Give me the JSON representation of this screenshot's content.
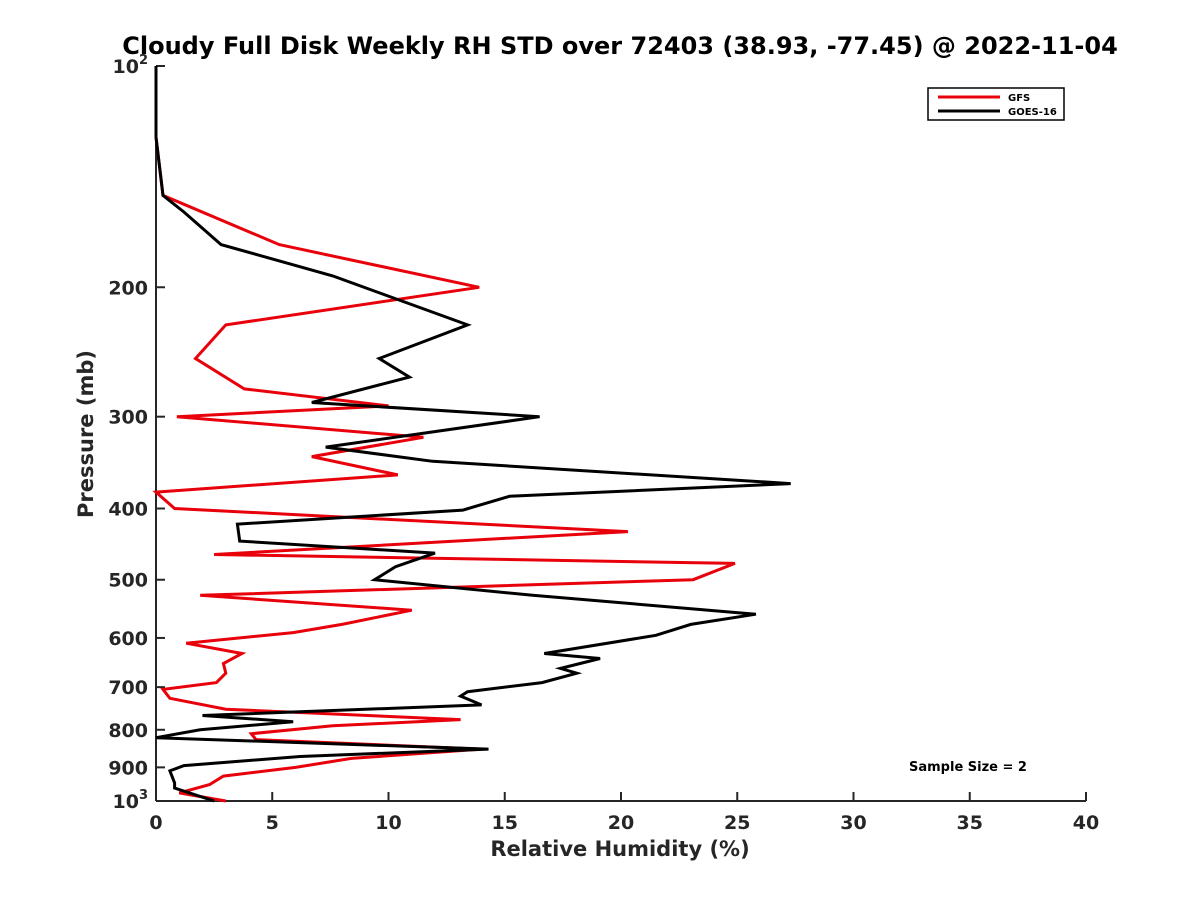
{
  "chart_data": {
    "type": "line",
    "title": "Cloudy Full Disk Weekly RH STD over 72403 (38.93, -77.45) @ 2022-11-04",
    "xlabel": "Relative Humidity (%)",
    "ylabel": "Pressure (mb)",
    "xlim": [
      0,
      40
    ],
    "ylim": [
      100,
      1000
    ],
    "y_scale": "log",
    "y_reversed": true,
    "grid": false,
    "legend_position": "top-right",
    "x_ticks": [
      0,
      5,
      10,
      15,
      20,
      25,
      30,
      35,
      40
    ],
    "x_tick_labels": [
      "0",
      "5",
      "10",
      "15",
      "20",
      "25",
      "30",
      "35",
      "40"
    ],
    "y_ticks": [
      100,
      200,
      300,
      400,
      500,
      600,
      700,
      800,
      900,
      1000
    ],
    "y_tick_labels": [
      {
        "base": "10",
        "exp": "2"
      },
      {
        "base": "200",
        "exp": ""
      },
      {
        "base": "300",
        "exp": ""
      },
      {
        "base": "400",
        "exp": ""
      },
      {
        "base": "500",
        "exp": ""
      },
      {
        "base": "600",
        "exp": ""
      },
      {
        "base": "700",
        "exp": ""
      },
      {
        "base": "800",
        "exp": ""
      },
      {
        "base": "900",
        "exp": ""
      },
      {
        "base": "10",
        "exp": "3"
      }
    ],
    "annotation": "Sample Size = 2",
    "series": [
      {
        "name": "GFS",
        "color": "#e8000b",
        "points": [
          [
            0,
            100
          ],
          [
            0,
            125
          ],
          [
            0.3,
            150
          ],
          [
            5.3,
            175
          ],
          [
            13.9,
            200
          ],
          [
            3,
            225
          ],
          [
            1.7,
            250
          ],
          [
            3.8,
            275
          ],
          [
            10,
            290
          ],
          [
            0.9,
            300
          ],
          [
            11.5,
            320
          ],
          [
            6.7,
            340
          ],
          [
            10.4,
            360
          ],
          [
            0,
            380
          ],
          [
            0.8,
            400
          ],
          [
            20.3,
            430
          ],
          [
            2.5,
            462
          ],
          [
            24.9,
            475
          ],
          [
            23.1,
            500
          ],
          [
            1.9,
            525
          ],
          [
            11,
            550
          ],
          [
            8,
            575
          ],
          [
            5.9,
            590
          ],
          [
            1.3,
            610
          ],
          [
            3.7,
            630
          ],
          [
            2.9,
            650
          ],
          [
            3,
            670
          ],
          [
            2.6,
            690
          ],
          [
            0.3,
            705
          ],
          [
            0.6,
            725
          ],
          [
            3,
            750
          ],
          [
            13.1,
            775
          ],
          [
            7.6,
            790
          ],
          [
            4.1,
            810
          ],
          [
            4.3,
            825
          ],
          [
            14,
            850
          ],
          [
            8.4,
            875
          ],
          [
            6,
            900
          ],
          [
            2.9,
            925
          ],
          [
            2.3,
            950
          ],
          [
            1,
            975
          ],
          [
            3,
            1000
          ]
        ]
      },
      {
        "name": "GOES-16",
        "color": "#000000",
        "points": [
          [
            0,
            100
          ],
          [
            0,
            125
          ],
          [
            0.3,
            150
          ],
          [
            1.2,
            158
          ],
          [
            2.8,
            175
          ],
          [
            7.6,
            193
          ],
          [
            13.4,
            225
          ],
          [
            9.6,
            250
          ],
          [
            10.9,
            265
          ],
          [
            6.7,
            287
          ],
          [
            16.5,
            300
          ],
          [
            7.3,
            330
          ],
          [
            11.9,
            345
          ],
          [
            27.3,
            370
          ],
          [
            15.2,
            385
          ],
          [
            13.2,
            402
          ],
          [
            3.5,
            420
          ],
          [
            3.6,
            443
          ],
          [
            12,
            460
          ],
          [
            10.3,
            480
          ],
          [
            9.4,
            500
          ],
          [
            16.2,
            525
          ],
          [
            25.8,
            557
          ],
          [
            23,
            575
          ],
          [
            21.5,
            595
          ],
          [
            16.7,
            630
          ],
          [
            19.1,
            640
          ],
          [
            17.4,
            660
          ],
          [
            18.1,
            670
          ],
          [
            16.6,
            690
          ],
          [
            13.4,
            710
          ],
          [
            13.1,
            720
          ],
          [
            14,
            740
          ],
          [
            2,
            765
          ],
          [
            5.9,
            780
          ],
          [
            1.9,
            800
          ],
          [
            0,
            820
          ],
          [
            14.3,
            850
          ],
          [
            6.2,
            870
          ],
          [
            1.2,
            895
          ],
          [
            0.6,
            910
          ],
          [
            0.8,
            945
          ],
          [
            0.8,
            960
          ],
          [
            2.5,
            1000
          ]
        ]
      }
    ]
  }
}
